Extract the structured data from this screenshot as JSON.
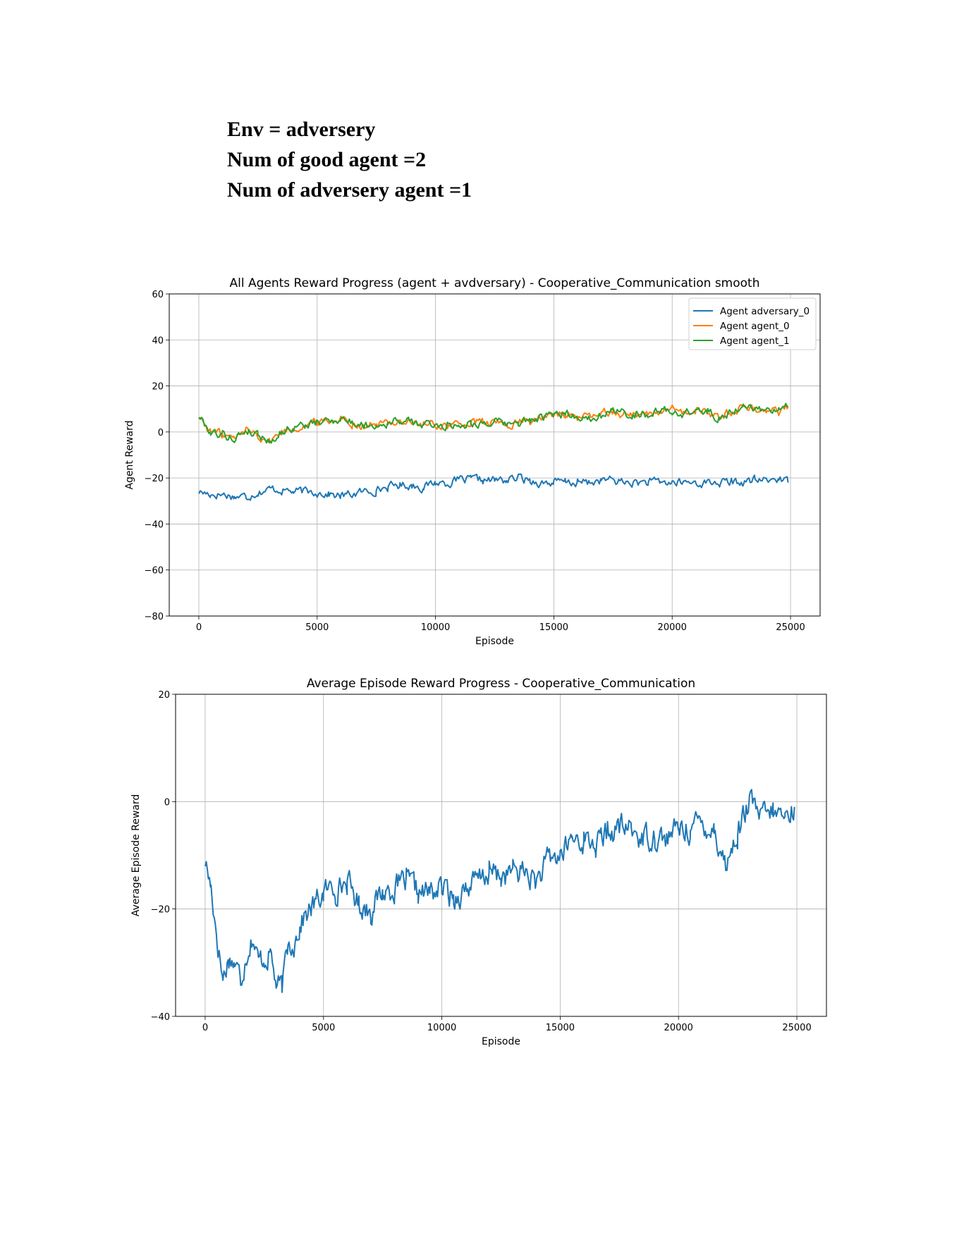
{
  "header": {
    "line1": "Env  = adversery",
    "line2": "Num of good agent =2",
    "line3": "Num of adversery agent =1"
  },
  "chart_data": [
    {
      "type": "line",
      "title": "All Agents Reward Progress (agent + avdversary) - Cooperative_Communication smooth",
      "xlabel": "Episode",
      "ylabel": "Agent Reward",
      "xlim": [
        -1250,
        26250
      ],
      "ylim": [
        -80,
        60
      ],
      "xticks": [
        0,
        5000,
        10000,
        15000,
        20000,
        25000
      ],
      "yticks": [
        -80,
        -60,
        -40,
        -20,
        0,
        20,
        40,
        60
      ],
      "xtick_labels": [
        "0",
        "5000",
        "10000",
        "15000",
        "20000",
        "25000"
      ],
      "ytick_labels": [
        "−80",
        "−60",
        "−40",
        "−20",
        "0",
        "20",
        "40",
        "60"
      ],
      "grid": true,
      "legend_position": "top-right",
      "series": [
        {
          "name": "Agent adversary_0",
          "color": "#1f77b4",
          "x": [
            0,
            500,
            1000,
            1500,
            2000,
            2500,
            3000,
            3500,
            4000,
            4500,
            5000,
            5500,
            6000,
            6500,
            7000,
            7500,
            8000,
            8500,
            9000,
            9500,
            10000,
            10500,
            11000,
            11500,
            12000,
            12500,
            13000,
            13500,
            14000,
            14500,
            15000,
            15500,
            16000,
            16500,
            17000,
            17500,
            18000,
            18500,
            19000,
            19500,
            20000,
            20500,
            21000,
            21500,
            22000,
            22500,
            23000,
            23500,
            24000,
            24500,
            24900
          ],
          "y": [
            -26,
            -27,
            -27,
            -28,
            -28,
            -26,
            -25,
            -25,
            -26,
            -26,
            -26,
            -27,
            -28,
            -27,
            -26,
            -25,
            -24,
            -23,
            -23,
            -24,
            -22,
            -22,
            -21,
            -21,
            -21,
            -21,
            -21,
            -20,
            -21,
            -22,
            -22,
            -22,
            -22,
            -22,
            -21,
            -21,
            -22,
            -22,
            -22,
            -22,
            -22,
            -22,
            -22,
            -22,
            -22,
            -22,
            -22,
            -21,
            -21,
            -20,
            -22
          ]
        },
        {
          "name": "Agent agent_0",
          "color": "#ff7f0e",
          "x": [
            0,
            500,
            1000,
            1500,
            2000,
            2500,
            3000,
            3500,
            4000,
            4500,
            5000,
            5500,
            6000,
            6500,
            7000,
            7500,
            8000,
            8500,
            9000,
            9500,
            10000,
            10500,
            11000,
            11500,
            12000,
            12500,
            13000,
            13500,
            14000,
            14500,
            15000,
            15500,
            16000,
            16500,
            17000,
            17500,
            18000,
            18500,
            19000,
            19500,
            20000,
            20500,
            21000,
            21500,
            22000,
            22500,
            23000,
            23500,
            24000,
            24500,
            24900
          ],
          "y": [
            7,
            0,
            -1,
            -3,
            1,
            -1,
            -4,
            0,
            2,
            3,
            4,
            5,
            6,
            4,
            3,
            3,
            4,
            5,
            4,
            3,
            3,
            3,
            3,
            4,
            4,
            4,
            3,
            4,
            5,
            6,
            7,
            8,
            7,
            6,
            8,
            9,
            8,
            8,
            8,
            9,
            9,
            8,
            9,
            9,
            6,
            9,
            11,
            10,
            10,
            9,
            11
          ]
        },
        {
          "name": "Agent agent_1",
          "color": "#2ca02c",
          "x": [
            0,
            500,
            1000,
            1500,
            2000,
            2500,
            3000,
            3500,
            4000,
            4500,
            5000,
            5500,
            6000,
            6500,
            7000,
            7500,
            8000,
            8500,
            9000,
            9500,
            10000,
            10500,
            11000,
            11500,
            12000,
            12500,
            13000,
            13500,
            14000,
            14500,
            15000,
            15500,
            16000,
            16500,
            17000,
            17500,
            18000,
            18500,
            19000,
            19500,
            20000,
            20500,
            21000,
            21500,
            22000,
            22500,
            23000,
            23500,
            24000,
            24500,
            24900
          ],
          "y": [
            7,
            0,
            -1,
            -3,
            1,
            -1,
            -4,
            0,
            2,
            3,
            4,
            5,
            6,
            4,
            3,
            3,
            4,
            5,
            4,
            3,
            3,
            3,
            3,
            4,
            4,
            4,
            3,
            4,
            5,
            6,
            7,
            8,
            7,
            6,
            8,
            9,
            8,
            8,
            8,
            9,
            9,
            8,
            9,
            9,
            6,
            9,
            11,
            10,
            10,
            9,
            11
          ]
        }
      ]
    },
    {
      "type": "line",
      "title": "Average Episode Reward Progress - Cooperative_Communication",
      "xlabel": "Episode",
      "ylabel": "Average Episode Reward",
      "xlim": [
        -1250,
        26250
      ],
      "ylim": [
        -40,
        20
      ],
      "xticks": [
        0,
        5000,
        10000,
        15000,
        20000,
        25000
      ],
      "yticks": [
        -40,
        -20,
        0,
        20
      ],
      "xtick_labels": [
        "0",
        "5000",
        "10000",
        "15000",
        "20000",
        "25000"
      ],
      "ytick_labels": [
        "−40",
        "−20",
        "0",
        "20"
      ],
      "grid": true,
      "series": [
        {
          "color": "#1f77b4",
          "x": [
            0,
            250,
            500,
            750,
            1000,
            1250,
            1500,
            1750,
            2000,
            2250,
            2500,
            2750,
            3000,
            3250,
            3500,
            3750,
            4000,
            4250,
            4500,
            5000,
            5500,
            6000,
            6500,
            7000,
            7500,
            8000,
            8500,
            9000,
            9500,
            10000,
            10500,
            11000,
            11500,
            12000,
            12500,
            13000,
            13500,
            14000,
            14500,
            15000,
            15500,
            16000,
            16500,
            17000,
            17500,
            18000,
            18500,
            19000,
            19500,
            20000,
            20500,
            21000,
            21500,
            22000,
            22500,
            23000,
            23500,
            24000,
            24500,
            24900
          ],
          "y": [
            -11,
            -16,
            -25,
            -33,
            -29,
            -30,
            -33,
            -28,
            -25,
            -30,
            -29,
            -28,
            -34,
            -35,
            -27,
            -26,
            -23,
            -21,
            -20,
            -17,
            -16,
            -15,
            -19,
            -20,
            -17,
            -16,
            -15,
            -17,
            -17,
            -16,
            -18,
            -16,
            -15,
            -13,
            -14,
            -13,
            -13,
            -15,
            -11,
            -10,
            -7,
            -7,
            -8,
            -6,
            -5,
            -5,
            -7,
            -6,
            -7,
            -5,
            -5,
            -4,
            -5,
            -12,
            -6,
            0,
            -3,
            -2,
            -3,
            -1
          ]
        }
      ]
    }
  ]
}
